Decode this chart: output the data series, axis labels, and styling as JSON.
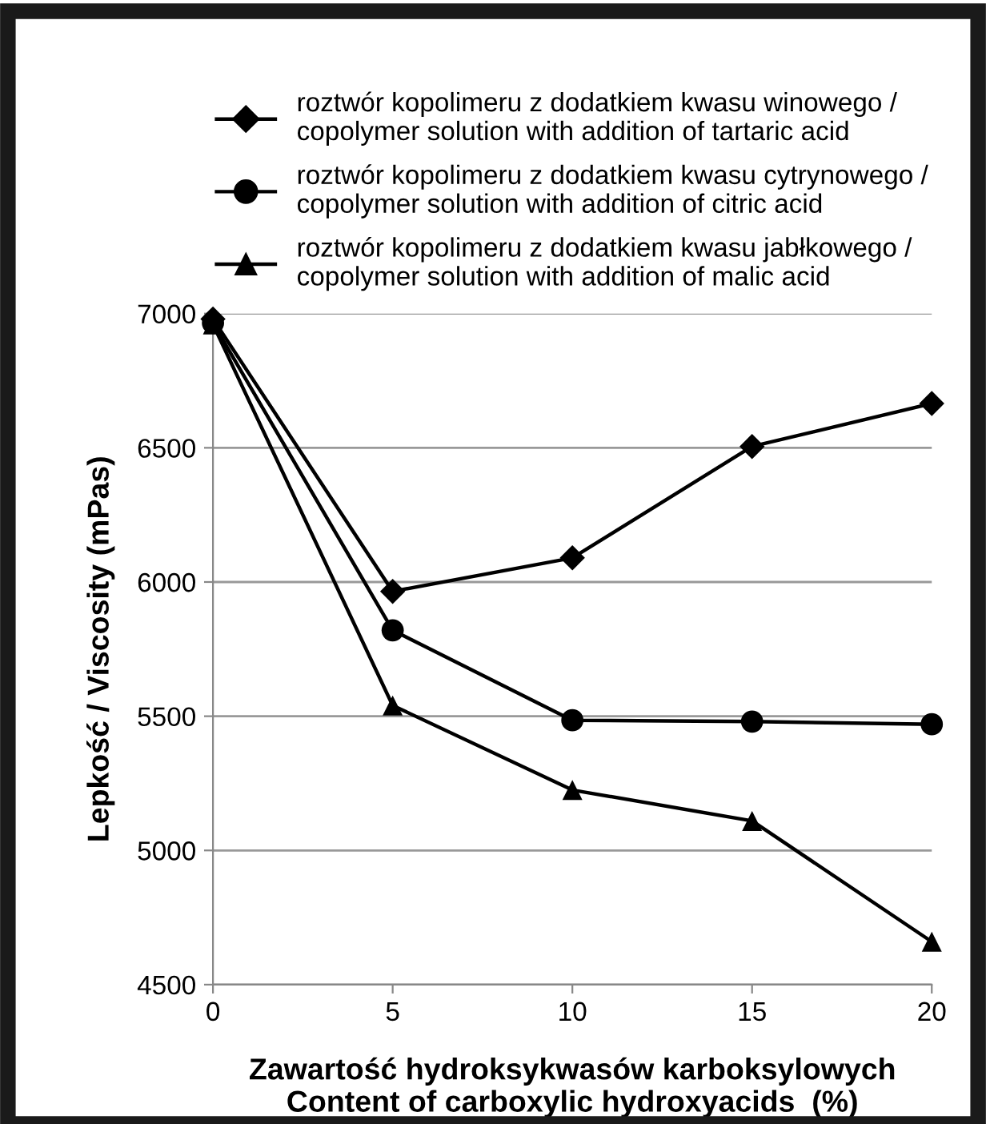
{
  "chart_data": {
    "type": "line",
    "xlabel": "Zawartość hydroksykwasów karboksylowych\nContent of carboxylic hydroxyacids  (%)",
    "ylabel": "Lepkość / Viscosity (mPas)",
    "x": [
      0,
      5,
      10,
      15,
      20
    ],
    "xlim": [
      0,
      20
    ],
    "xticks": [
      0,
      5,
      10,
      15,
      20
    ],
    "ylim": [
      4500,
      7000
    ],
    "yticks": [
      4500,
      5000,
      5500,
      6000,
      6500,
      7000
    ],
    "grid": "y",
    "legend": "top",
    "line_style": "solid",
    "series": [
      {
        "name": "roztwór kopolimeru z dodatkiem kwasu winowego /\ncopolymer solution with addition of tartaric acid",
        "color": "#000000",
        "marker": "diamond",
        "values": [
          6980,
          5965,
          6090,
          6505,
          6665
        ]
      },
      {
        "name": "roztwór kopolimeru z dodatkiem kwasu cytrynowego /\ncopolymer solution with addition of citric acid",
        "color": "#000000",
        "marker": "circle",
        "values": [
          6965,
          5820,
          5485,
          5480,
          5470
        ]
      },
      {
        "name": "roztwór kopolimeru z dodatkiem kwasu jabłkowego /\ncopolymer solution with addition of malic acid",
        "color": "#000000",
        "marker": "triangle",
        "values": [
          6960,
          5540,
          5225,
          5110,
          4660
        ]
      }
    ]
  }
}
